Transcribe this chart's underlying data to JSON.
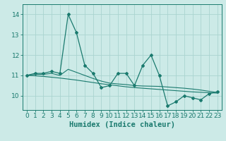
{
  "x": [
    0,
    1,
    2,
    3,
    4,
    5,
    6,
    7,
    8,
    9,
    10,
    11,
    12,
    13,
    14,
    15,
    16,
    17,
    18,
    19,
    20,
    21,
    22,
    23
  ],
  "y_main": [
    11.0,
    11.1,
    11.1,
    11.2,
    11.1,
    14.0,
    13.1,
    11.5,
    11.1,
    10.4,
    10.5,
    11.1,
    11.1,
    10.5,
    11.5,
    12.0,
    11.0,
    9.5,
    9.7,
    10.0,
    9.9,
    9.8,
    10.1,
    10.2
  ],
  "y_smooth1": [
    11.0,
    11.05,
    11.05,
    11.1,
    11.0,
    11.3,
    11.15,
    11.0,
    10.85,
    10.72,
    10.62,
    10.58,
    10.55,
    10.5,
    10.48,
    10.47,
    10.46,
    10.43,
    10.4,
    10.37,
    10.33,
    10.28,
    10.22,
    10.16
  ],
  "y_smooth2": [
    11.0,
    10.98,
    10.95,
    10.91,
    10.87,
    10.82,
    10.77,
    10.71,
    10.65,
    10.59,
    10.54,
    10.49,
    10.44,
    10.4,
    10.37,
    10.34,
    10.31,
    10.28,
    10.25,
    10.22,
    10.19,
    10.17,
    10.15,
    10.13
  ],
  "line_color": "#1a7a6e",
  "bg_color": "#cceae7",
  "grid_color": "#aad4d0",
  "xlabel": "Humidex (Indice chaleur)",
  "xlim": [
    -0.5,
    23.5
  ],
  "ylim": [
    9.3,
    14.5
  ],
  "yticks": [
    10,
    11,
    12,
    13,
    14
  ],
  "xticks": [
    0,
    1,
    2,
    3,
    4,
    5,
    6,
    7,
    8,
    9,
    10,
    11,
    12,
    13,
    14,
    15,
    16,
    17,
    18,
    19,
    20,
    21,
    22,
    23
  ],
  "fontsize_ticks": 6.5,
  "fontsize_label": 7.5
}
